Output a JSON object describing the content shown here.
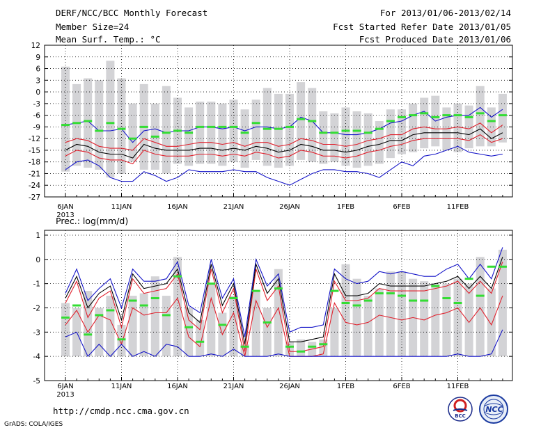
{
  "header": {
    "title": "DERF/NCC/BCC Monthly Forecast",
    "member_size": "Member Size=24",
    "variable": "Mean Surf. Temp.: °C",
    "period": "For 2013/01/06-2013/02/14",
    "started": "Fcst Started Refer Date 2013/01/05",
    "produced": "Fcst Produced Date 2013/01/06"
  },
  "footer": {
    "url": "http://cmdp.ncc.cma.gov.cn",
    "credit": "GrADS: COLA/IGES",
    "logos": [
      "BCC",
      "NCC"
    ]
  },
  "colors": {
    "bar": "#d3d3d6",
    "mean": "#000000",
    "inner": "#e0202c",
    "outer": "#1515c8",
    "green": "#33dd33"
  },
  "chart_data": [
    {
      "type": "line",
      "title": "Mean Surf. Temp.: °C",
      "days": 40,
      "x_tick_labels": [
        "6JAN",
        "11JAN",
        "16JAN",
        "21JAN",
        "26JAN",
        "1FEB",
        "6FEB",
        "11FEB"
      ],
      "year_label": "2013",
      "ylim": [
        -27,
        12
      ],
      "y_ticks": [
        12,
        9,
        6,
        3,
        0,
        -3,
        -6,
        -9,
        -12,
        -15,
        -18,
        -21,
        -24,
        -27
      ],
      "bar_base": -27,
      "bar_top": [
        6.5,
        2,
        3.5,
        3,
        8,
        3.5,
        -3,
        2,
        -3,
        1.5,
        -1.5,
        -4,
        -2.5,
        -2.5,
        -3,
        -2,
        -4.5,
        -2,
        1,
        -0.5,
        -0.5,
        2.5,
        1,
        -5,
        -5.5,
        -4,
        -5,
        -5.5,
        -7.5,
        -4.5,
        -4.5,
        -3,
        -1.5,
        -1,
        -4,
        -3,
        -3.5,
        1.5,
        -4,
        -0.5
      ],
      "bar_bottom": [
        -20.5,
        -19,
        -19.5,
        -20,
        -22,
        -21,
        -18,
        -20,
        -20,
        -21,
        -18.5,
        -19,
        -18.5,
        -18.5,
        -19,
        -18,
        -19.5,
        -17.5,
        -19,
        -19.5,
        -19,
        -17.5,
        -18,
        -18.5,
        -18,
        -19,
        -19.5,
        -19,
        -18.5,
        -17,
        -16,
        -15.5,
        -14.5,
        -14,
        -15,
        -15.5,
        -14.5,
        -14,
        -14,
        -13
      ],
      "series": [
        {
          "name": "max",
          "color": "#1515c8",
          "values": [
            -8.5,
            -8,
            -7.5,
            -10,
            -10,
            -9.5,
            -13,
            -10,
            -9.5,
            -10.5,
            -10,
            -10,
            -9,
            -9,
            -9.5,
            -9,
            -10,
            -9,
            -9,
            -9.5,
            -9,
            -6.5,
            -7.5,
            -10.5,
            -10.5,
            -11,
            -11,
            -10.5,
            -9.5,
            -8,
            -7.5,
            -6,
            -5,
            -7.5,
            -6.5,
            -6,
            -6,
            -4,
            -6.5,
            -4.5
          ]
        },
        {
          "name": "upper",
          "color": "#e0202c",
          "values": [
            -13,
            -12,
            -12.5,
            -14,
            -14.5,
            -14.5,
            -15,
            -12,
            -13,
            -14,
            -14,
            -13.5,
            -13,
            -13,
            -13.5,
            -13,
            -14,
            -13,
            -13,
            -14,
            -13.5,
            -12,
            -12.5,
            -13.5,
            -13.5,
            -14,
            -13.5,
            -12.5,
            -12,
            -11,
            -11,
            -9.5,
            -9,
            -9.5,
            -9.5,
            -9,
            -9.5,
            -8,
            -10.5,
            -8.5
          ]
        },
        {
          "name": "mean",
          "color": "#000000",
          "values": [
            -15,
            -13.5,
            -14,
            -15.5,
            -16,
            -16,
            -17,
            -13.5,
            -14.5,
            -15,
            -15,
            -15,
            -14.5,
            -14.5,
            -15,
            -14.5,
            -15,
            -14,
            -14.5,
            -15.5,
            -15,
            -13.5,
            -14,
            -15,
            -15,
            -15.5,
            -15,
            -14,
            -13.5,
            -12.5,
            -12.5,
            -11,
            -10.5,
            -10.5,
            -10.5,
            -10.5,
            -11,
            -9.5,
            -12,
            -10.5
          ]
        },
        {
          "name": "lower",
          "color": "#e0202c",
          "values": [
            -16.5,
            -15,
            -15.5,
            -17,
            -17.5,
            -17.5,
            -18.5,
            -15,
            -16,
            -16.5,
            -16.5,
            -16.5,
            -16,
            -16,
            -16.5,
            -16,
            -16.5,
            -15.5,
            -16,
            -17,
            -16.5,
            -15,
            -15.5,
            -16.5,
            -16.5,
            -17,
            -16.5,
            -15.5,
            -15,
            -14,
            -13.5,
            -12.5,
            -12,
            -12,
            -12,
            -12,
            -12.5,
            -11,
            -13,
            -12
          ]
        },
        {
          "name": "min",
          "color": "#1515c8",
          "values": [
            -20,
            -18,
            -17.5,
            -19,
            -22,
            -23,
            -23,
            -20.5,
            -21.5,
            -23,
            -22,
            -20,
            -20.5,
            -20.5,
            -20.5,
            -20,
            -20.5,
            -20.5,
            -22,
            -23,
            -24,
            -22.5,
            -21,
            -20,
            -20,
            -20.5,
            -20.5,
            -21,
            -22,
            -20,
            -18,
            -19,
            -16.5,
            -16,
            -15,
            -14,
            -15.5,
            -16,
            -16.5,
            -16
          ]
        }
      ],
      "markers": {
        "name": "observed",
        "color": "#33dd33",
        "values": [
          -8.5,
          -8,
          -7.5,
          -10,
          -8,
          -9.5,
          -12,
          -9,
          -11.5,
          -10.5,
          -10,
          -10.5,
          -9,
          -9,
          -9,
          -9,
          -10.5,
          -8,
          -9.5,
          -9.5,
          -9,
          -7,
          -7.5,
          -10.5,
          -10.5,
          -10,
          -10,
          -10.5,
          -9.5,
          -7.5,
          -6.5,
          -6,
          -5.5,
          -6.5,
          -6,
          -6,
          -6.5,
          -5.5,
          -7.5,
          -6
        ]
      }
    },
    {
      "type": "line",
      "title": "Prec.: log(mm/d)",
      "days": 40,
      "x_tick_labels": [
        "6JAN",
        "11JAN",
        "16JAN",
        "21JAN",
        "26JAN",
        "1FEB",
        "6FEB",
        "11FEB"
      ],
      "year_label": "2013",
      "ylim": [
        -5,
        1.2
      ],
      "y_ticks": [
        1,
        0,
        -1,
        -2,
        -3,
        -4,
        -5
      ],
      "bar_base": -4,
      "bar_top": [
        -1.8,
        -2,
        -1.3,
        -2,
        -1.5,
        -2.7,
        -1.5,
        -1.4,
        -0.7,
        -1.5,
        0.1,
        -2,
        -2.5,
        -1,
        -2.2,
        -1.5,
        -3.5,
        -1.3,
        -2,
        -0.4,
        -3.4,
        -3.3,
        -3.4,
        -3.3,
        -2,
        -0.2,
        -0.8,
        -1.5,
        -1.2,
        -0.5,
        -0.5,
        -0.8,
        -0.9,
        -1,
        -1,
        -0.8,
        -1,
        0.1,
        -1.2,
        0.4
      ],
      "series": [
        {
          "name": "max",
          "color": "#1515c8",
          "values": [
            -1.4,
            -0.4,
            -1.7,
            -1.2,
            -0.8,
            -2,
            -0.4,
            -0.9,
            -0.9,
            -0.8,
            -0.1,
            -1.9,
            -2.2,
            0,
            -1.6,
            -0.8,
            -3.2,
            0,
            -1.1,
            -0.6,
            -3,
            -2.8,
            -2.8,
            -2.7,
            -0.4,
            -0.8,
            -1,
            -0.9,
            -0.5,
            -0.6,
            -0.5,
            -0.6,
            -0.7,
            -0.7,
            -0.4,
            -0.2,
            -0.8,
            -0.2,
            -0.8,
            0.5
          ]
        },
        {
          "name": "upper",
          "color": "#e0202c",
          "values": [
            -1.8,
            -0.9,
            -2.4,
            -1.6,
            -1.3,
            -2.8,
            -0.8,
            -1.4,
            -1.3,
            -1.2,
            -0.6,
            -2.5,
            -2.9,
            -0.4,
            -2.2,
            -1.2,
            -3.8,
            -0.4,
            -1.7,
            -1.1,
            -3.8,
            -3.8,
            -3.7,
            -3.6,
            -0.9,
            -1.7,
            -1.7,
            -1.6,
            -1.2,
            -1.3,
            -1.3,
            -1.3,
            -1.3,
            -1.2,
            -1.1,
            -0.9,
            -1.4,
            -0.9,
            -1.4,
            -0.1
          ]
        },
        {
          "name": "mean",
          "color": "#000000",
          "values": [
            -1.6,
            -0.7,
            -2,
            -1.4,
            -1.1,
            -2.5,
            -0.6,
            -1.2,
            -1.1,
            -1,
            -0.4,
            -2.2,
            -2.6,
            -0.2,
            -1.9,
            -1,
            -3.5,
            -0.2,
            -1.4,
            -0.8,
            -3.4,
            -3.4,
            -3.3,
            -3.2,
            -0.6,
            -1.5,
            -1.5,
            -1.4,
            -1,
            -1.1,
            -1.1,
            -1.1,
            -1.1,
            -1,
            -0.9,
            -0.7,
            -1.2,
            -0.7,
            -1.2,
            0.1
          ]
        },
        {
          "name": "lower",
          "color": "#e0202c",
          "values": [
            -2.7,
            -2.1,
            -3,
            -2.3,
            -2.5,
            -3.5,
            -2,
            -2.3,
            -2.2,
            -2.2,
            -1.6,
            -3.2,
            -3.6,
            -1.6,
            -3.1,
            -2.2,
            -4,
            -1.7,
            -2.8,
            -2,
            -4,
            -4,
            -4,
            -3.9,
            -1.8,
            -2.6,
            -2.7,
            -2.6,
            -2.3,
            -2.4,
            -2.5,
            -2.4,
            -2.5,
            -2.3,
            -2.2,
            -2,
            -2.6,
            -2,
            -2.7,
            -1.5
          ]
        },
        {
          "name": "min",
          "color": "#1515c8",
          "values": [
            -3.2,
            -3,
            -4,
            -3.5,
            -4,
            -3.5,
            -4,
            -3.8,
            -4,
            -3.5,
            -3.6,
            -4,
            -4,
            -3.9,
            -4,
            -3.7,
            -4,
            -4,
            -4,
            -3.9,
            -4,
            -4,
            -4,
            -4,
            -4,
            -4,
            -4,
            -4,
            -4,
            -4,
            -4,
            -4,
            -4,
            -4,
            -4,
            -3.9,
            -4,
            -4,
            -3.9,
            -2.9
          ]
        }
      ],
      "markers": {
        "name": "observed",
        "color": "#33dd33",
        "values": [
          -2.4,
          -1.9,
          -3.1,
          -2.3,
          -2.1,
          -3.3,
          -1.7,
          -1.9,
          -1.6,
          -2.3,
          -0.7,
          -2.8,
          -3.4,
          -1,
          -2.7,
          -1.6,
          -3.6,
          -1.3,
          -2.6,
          -1.2,
          -3.6,
          -3.8,
          -3.6,
          -3.5,
          -1.3,
          -1.8,
          -1.9,
          -1.7,
          -1.4,
          -1.4,
          -1.5,
          -1.7,
          -1.7,
          -1.1,
          -1.6,
          -1.8,
          -0.8,
          -1.5,
          -0.3,
          -0.3
        ]
      }
    }
  ]
}
